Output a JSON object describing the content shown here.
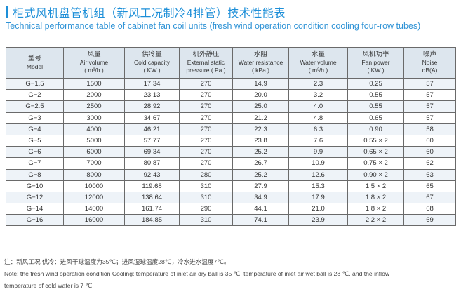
{
  "title": {
    "cn": "柜式风机盘管机组（新风工况制冷4排管）技术性能表",
    "en": "Technical performance table of cabinet fan coil units (fresh wind operation condition cooling four-row tubes)"
  },
  "table": {
    "headers": [
      {
        "cn": "型号",
        "en": "Model",
        "unit": ""
      },
      {
        "cn": "风量",
        "en": "Air volume",
        "unit": "( m³/h )"
      },
      {
        "cn": "供冷量",
        "en": "Cold capacity",
        "unit": "( KW )"
      },
      {
        "cn": "机外静压",
        "en": "External static",
        "unit": "pressure ( Pa )"
      },
      {
        "cn": "水阻",
        "en": "Water resistance",
        "unit": "( kPa )"
      },
      {
        "cn": "水量",
        "en": "Water volume",
        "unit": "( m³/h )"
      },
      {
        "cn": "风机功率",
        "en": "Fan power",
        "unit": "( KW )"
      },
      {
        "cn": "噪声",
        "en": "Noise",
        "unit": "dB(A)"
      }
    ],
    "rows": [
      [
        "G−1.5",
        "1500",
        "17.34",
        "270",
        "14.9",
        "2.3",
        "0.25",
        "57"
      ],
      [
        "G−2",
        "2000",
        "23.13",
        "270",
        "20.0",
        "3.2",
        "0.55",
        "57"
      ],
      [
        "G−2.5",
        "2500",
        "28.92",
        "270",
        "25.0",
        "4.0",
        "0.55",
        "57"
      ],
      [
        "G−3",
        "3000",
        "34.67",
        "270",
        "21.2",
        "4.8",
        "0.65",
        "57"
      ],
      [
        "G−4",
        "4000",
        "46.21",
        "270",
        "22.3",
        "6.3",
        "0.90",
        "58"
      ],
      [
        "G−5",
        "5000",
        "57.77",
        "270",
        "23.8",
        "7.6",
        "0.55 × 2",
        "60"
      ],
      [
        "G−6",
        "6000",
        "69.34",
        "270",
        "25.2",
        "9.9",
        "0.65 × 2",
        "60"
      ],
      [
        "G−7",
        "7000",
        "80.87",
        "270",
        "26.7",
        "10.9",
        "0.75 × 2",
        "62"
      ],
      [
        "G−8",
        "8000",
        "92.43",
        "280",
        "25.2",
        "12.6",
        "0.90 × 2",
        "63"
      ],
      [
        "G−10",
        "10000",
        "119.68",
        "310",
        "27.9",
        "15.3",
        "1.5 × 2",
        "65"
      ],
      [
        "G−12",
        "12000",
        "138.64",
        "310",
        "34.9",
        "17.9",
        "1.8 × 2",
        "67"
      ],
      [
        "G−14",
        "14000",
        "161.74",
        "290",
        "44.1",
        "21.0",
        "1.8 × 2",
        "68"
      ],
      [
        "G−16",
        "16000",
        "184.85",
        "310",
        "74.1",
        "23.9",
        "2.2 × 2",
        "69"
      ]
    ]
  },
  "notes": {
    "cn": "注：新风工况  供冷：进风干球温度为35℃；进风湿球温度28℃，冷水进水温度7℃。",
    "en_line1": "Note: the fresh wind operation condition   Cooling: temperature of inlet air dry ball is 35 ℃, temperature of inlet air wet ball is 28 ℃, and the inflow",
    "en_line2": "temperature of cold water is 7 ℃."
  },
  "colors": {
    "accent": "#1d8fd8",
    "header_bg": "#dde6ee",
    "stripe_bg": "#eef3f8"
  }
}
